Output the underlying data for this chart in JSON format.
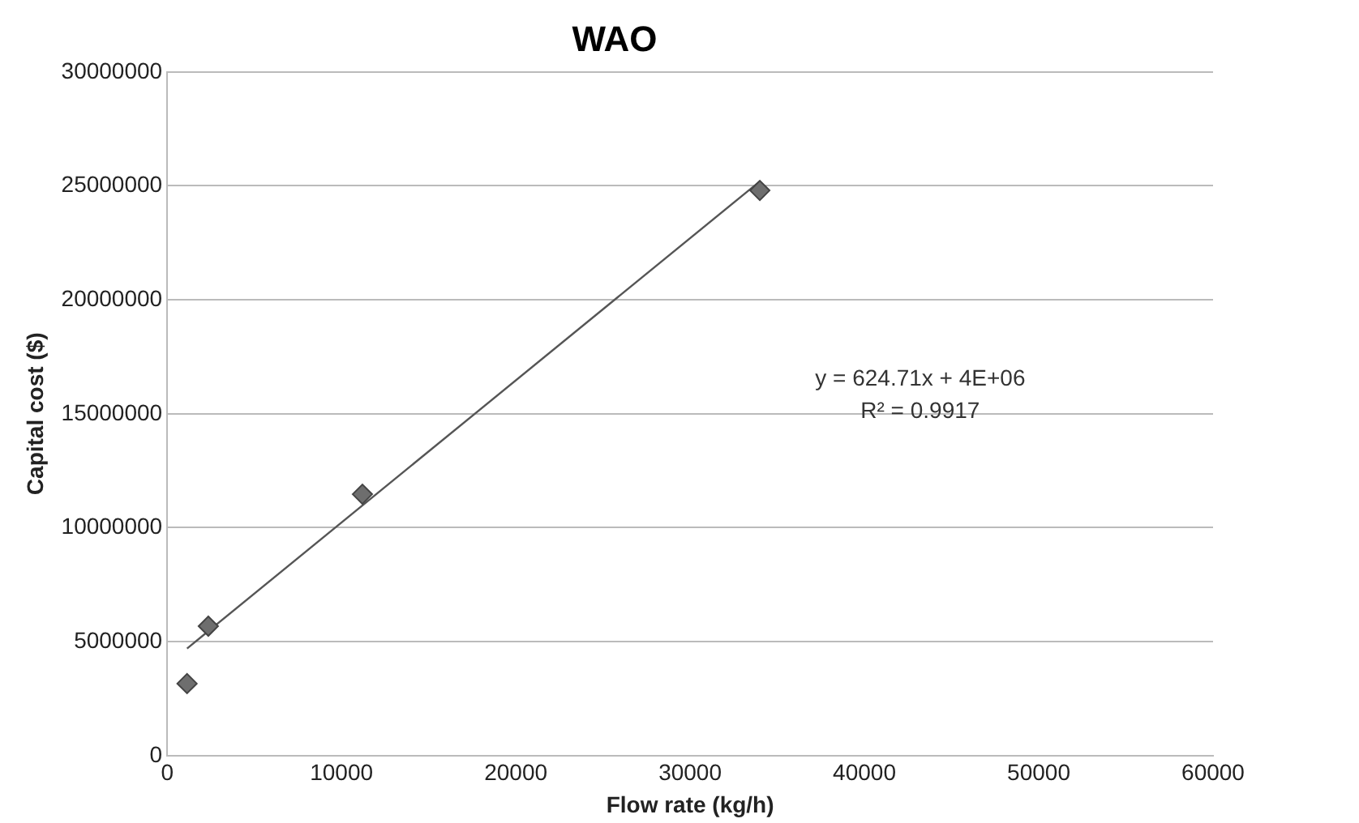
{
  "chart_data": {
    "type": "scatter",
    "title": "WAO",
    "xlabel": "Flow rate (kg/h)",
    "ylabel": "Capital cost ($)",
    "xlim": [
      0,
      60000
    ],
    "xticks": [
      0,
      10000,
      20000,
      30000,
      40000,
      50000,
      60000
    ],
    "ylim": [
      0,
      30000000
    ],
    "yticks": [
      0,
      5000000,
      10000000,
      15000000,
      20000000,
      25000000,
      30000000
    ],
    "grid": "y",
    "legend": false,
    "marker": "diamond",
    "series": [
      {
        "color": "#6e6e6e",
        "x": [
          1140,
          2360,
          11200,
          34000
        ],
        "values": [
          3160000,
          5680000,
          11470000,
          24800000
        ]
      },
      {
        "type": "line",
        "color": "#555555",
        "x": [
          1140,
          34000
        ],
        "values": [
          4700000,
          25200000
        ],
        "marker": "none"
      }
    ],
    "annotations": [
      "y = 624.71x + 4E+06",
      "R² = 0.9917"
    ]
  }
}
